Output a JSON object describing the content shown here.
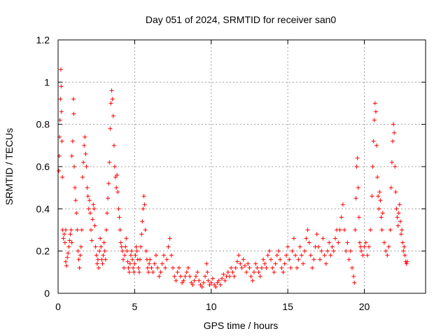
{
  "chart_data": {
    "type": "scatter",
    "title": "Day 051 of 2024, SRMTID for receiver san0",
    "xlabel": "GPS time / hours",
    "ylabel": "SRMTID / TECUs",
    "xlim": [
      0,
      24
    ],
    "ylim": [
      0,
      1.2
    ],
    "xticks": [
      0,
      5,
      10,
      15,
      20
    ],
    "xtick_labels": [
      "0",
      "5",
      "10",
      "15",
      "20"
    ],
    "yticks": [
      0,
      0.2,
      0.4,
      0.6,
      0.8,
      1.0,
      1.2
    ],
    "ytick_labels": [
      "0",
      "0.2",
      "0.4",
      "0.6",
      "0.8",
      "1",
      "1.2"
    ],
    "grid": true,
    "marker": "+",
    "color": "#ff0000",
    "series": [
      {
        "name": "san0",
        "points": [
          [
            0.05,
            0.58
          ],
          [
            0.08,
            0.65
          ],
          [
            0.1,
            0.74
          ],
          [
            0.12,
            0.82
          ],
          [
            0.15,
            0.92
          ],
          [
            0.18,
            1.06
          ],
          [
            0.2,
            0.98
          ],
          [
            0.22,
            0.86
          ],
          [
            0.25,
            0.72
          ],
          [
            0.28,
            0.55
          ],
          [
            0.3,
            0.3
          ],
          [
            0.35,
            0.26
          ],
          [
            0.4,
            0.28
          ],
          [
            0.45,
            0.24
          ],
          [
            0.5,
            0.3
          ],
          [
            0.5,
            0.15
          ],
          [
            0.55,
            0.13
          ],
          [
            0.6,
            0.17
          ],
          [
            0.65,
            0.19
          ],
          [
            0.7,
            0.22
          ],
          [
            0.75,
            0.25
          ],
          [
            0.8,
            0.28
          ],
          [
            0.85,
            0.3
          ],
          [
            0.9,
            0.24
          ],
          [
            0.9,
            0.65
          ],
          [
            0.95,
            0.72
          ],
          [
            1.0,
            0.92
          ],
          [
            1.02,
            0.85
          ],
          [
            1.05,
            0.6
          ],
          [
            1.1,
            0.5
          ],
          [
            1.15,
            0.44
          ],
          [
            1.2,
            0.38
          ],
          [
            1.25,
            0.3
          ],
          [
            1.3,
            0.2
          ],
          [
            1.35,
            0.16
          ],
          [
            1.4,
            0.12
          ],
          [
            1.45,
            0.18
          ],
          [
            1.5,
            0.22
          ],
          [
            1.55,
            0.3
          ],
          [
            1.6,
            0.55
          ],
          [
            1.65,
            0.62
          ],
          [
            1.7,
            0.7
          ],
          [
            1.75,
            0.74
          ],
          [
            1.8,
            0.66
          ],
          [
            1.85,
            0.6
          ],
          [
            1.9,
            0.5
          ],
          [
            1.95,
            0.46
          ],
          [
            2.0,
            0.4
          ],
          [
            2.05,
            0.44
          ],
          [
            2.1,
            0.38
          ],
          [
            2.15,
            0.3
          ],
          [
            2.2,
            0.25
          ],
          [
            2.25,
            0.35
          ],
          [
            2.3,
            0.42
          ],
          [
            2.35,
            0.4
          ],
          [
            2.4,
            0.32
          ],
          [
            2.45,
            0.22
          ],
          [
            2.5,
            0.18
          ],
          [
            2.55,
            0.14
          ],
          [
            2.6,
            0.16
          ],
          [
            2.65,
            0.12
          ],
          [
            2.7,
            0.2
          ],
          [
            2.75,
            0.26
          ],
          [
            2.8,
            0.22
          ],
          [
            2.85,
            0.16
          ],
          [
            2.9,
            0.14
          ],
          [
            2.95,
            0.18
          ],
          [
            3.0,
            0.24
          ],
          [
            3.05,
            0.2
          ],
          [
            3.1,
            0.16
          ],
          [
            3.15,
            0.3
          ],
          [
            3.2,
            0.38
          ],
          [
            3.25,
            0.45
          ],
          [
            3.3,
            0.52
          ],
          [
            3.35,
            0.62
          ],
          [
            3.4,
            0.78
          ],
          [
            3.45,
            0.9
          ],
          [
            3.5,
            0.96
          ],
          [
            3.55,
            0.92
          ],
          [
            3.6,
            0.84
          ],
          [
            3.65,
            0.7
          ],
          [
            3.7,
            0.6
          ],
          [
            3.75,
            0.55
          ],
          [
            3.8,
            0.5
          ],
          [
            3.85,
            0.56
          ],
          [
            3.9,
            0.48
          ],
          [
            3.95,
            0.4
          ],
          [
            4.0,
            0.36
          ],
          [
            4.05,
            0.3
          ],
          [
            4.1,
            0.24
          ],
          [
            4.15,
            0.22
          ],
          [
            4.2,
            0.2
          ],
          [
            4.25,
            0.16
          ],
          [
            4.3,
            0.12
          ],
          [
            4.35,
            0.18
          ],
          [
            4.4,
            0.22
          ],
          [
            4.45,
            0.26
          ],
          [
            4.5,
            0.2
          ],
          [
            4.55,
            0.15
          ],
          [
            4.6,
            0.12
          ],
          [
            4.65,
            0.1
          ],
          [
            4.7,
            0.14
          ],
          [
            4.75,
            0.18
          ],
          [
            4.8,
            0.2
          ],
          [
            4.85,
            0.16
          ],
          [
            4.9,
            0.12
          ],
          [
            4.95,
            0.1
          ],
          [
            5.0,
            0.14
          ],
          [
            5.05,
            0.18
          ],
          [
            5.1,
            0.22
          ],
          [
            5.15,
            0.2
          ],
          [
            5.2,
            0.16
          ],
          [
            5.25,
            0.12
          ],
          [
            5.3,
            0.1
          ],
          [
            5.35,
            0.16
          ],
          [
            5.4,
            0.22
          ],
          [
            5.45,
            0.28
          ],
          [
            5.5,
            0.34
          ],
          [
            5.55,
            0.4
          ],
          [
            5.6,
            0.46
          ],
          [
            5.65,
            0.42
          ],
          [
            5.7,
            0.3
          ],
          [
            5.75,
            0.2
          ],
          [
            5.8,
            0.16
          ],
          [
            5.85,
            0.12
          ],
          [
            5.9,
            0.1
          ],
          [
            5.95,
            0.14
          ],
          [
            6.0,
            0.16
          ],
          [
            6.1,
            0.12
          ],
          [
            6.2,
            0.1
          ],
          [
            6.3,
            0.14
          ],
          [
            6.4,
            0.18
          ],
          [
            6.5,
            0.12
          ],
          [
            6.6,
            0.08
          ],
          [
            6.7,
            0.1
          ],
          [
            6.8,
            0.14
          ],
          [
            6.9,
            0.18
          ],
          [
            7.0,
            0.12
          ],
          [
            7.1,
            0.16
          ],
          [
            7.2,
            0.22
          ],
          [
            7.3,
            0.26
          ],
          [
            7.4,
            0.18
          ],
          [
            7.5,
            0.12
          ],
          [
            7.6,
            0.08
          ],
          [
            7.7,
            0.06
          ],
          [
            7.8,
            0.1
          ],
          [
            7.9,
            0.12
          ],
          [
            8.0,
            0.08
          ],
          [
            8.1,
            0.05
          ],
          [
            8.2,
            0.06
          ],
          [
            8.3,
            0.08
          ],
          [
            8.4,
            0.1
          ],
          [
            8.5,
            0.12
          ],
          [
            8.6,
            0.08
          ],
          [
            8.7,
            0.05
          ],
          [
            8.8,
            0.04
          ],
          [
            8.9,
            0.06
          ],
          [
            9.0,
            0.08
          ],
          [
            9.1,
            0.1
          ],
          [
            9.2,
            0.06
          ],
          [
            9.3,
            0.04
          ],
          [
            9.4,
            0.03
          ],
          [
            9.5,
            0.05
          ],
          [
            9.6,
            0.08
          ],
          [
            9.7,
            0.14
          ],
          [
            9.75,
            0.1
          ],
          [
            9.8,
            0.06
          ],
          [
            9.9,
            0.04
          ],
          [
            10.0,
            0.05
          ],
          [
            10.1,
            0.07
          ],
          [
            10.2,
            0.04
          ],
          [
            10.3,
            0.03
          ],
          [
            10.4,
            0.05
          ],
          [
            10.5,
            0.06
          ],
          [
            10.6,
            0.04
          ],
          [
            10.7,
            0.07
          ],
          [
            10.8,
            0.09
          ],
          [
            10.9,
            0.06
          ],
          [
            11.0,
            0.08
          ],
          [
            11.1,
            0.1
          ],
          [
            11.2,
            0.08
          ],
          [
            11.3,
            0.12
          ],
          [
            11.4,
            0.1
          ],
          [
            11.5,
            0.08
          ],
          [
            11.6,
            0.12
          ],
          [
            11.7,
            0.15
          ],
          [
            11.8,
            0.18
          ],
          [
            11.9,
            0.14
          ],
          [
            12.0,
            0.12
          ],
          [
            12.1,
            0.16
          ],
          [
            12.2,
            0.13
          ],
          [
            12.3,
            0.1
          ],
          [
            12.4,
            0.14
          ],
          [
            12.5,
            0.12
          ],
          [
            12.6,
            0.08
          ],
          [
            12.7,
            0.06
          ],
          [
            12.8,
            0.1
          ],
          [
            12.9,
            0.14
          ],
          [
            13.0,
            0.12
          ],
          [
            13.1,
            0.1
          ],
          [
            13.2,
            0.08
          ],
          [
            13.3,
            0.12
          ],
          [
            13.4,
            0.16
          ],
          [
            13.5,
            0.14
          ],
          [
            13.6,
            0.12
          ],
          [
            13.7,
            0.18
          ],
          [
            13.8,
            0.2
          ],
          [
            13.9,
            0.16
          ],
          [
            14.0,
            0.12
          ],
          [
            14.1,
            0.1
          ],
          [
            14.2,
            0.14
          ],
          [
            14.3,
            0.18
          ],
          [
            14.4,
            0.2
          ],
          [
            14.5,
            0.16
          ],
          [
            14.6,
            0.12
          ],
          [
            14.7,
            0.1
          ],
          [
            14.8,
            0.14
          ],
          [
            14.9,
            0.18
          ],
          [
            15.0,
            0.22
          ],
          [
            15.1,
            0.16
          ],
          [
            15.2,
            0.12
          ],
          [
            15.3,
            0.2
          ],
          [
            15.4,
            0.26
          ],
          [
            15.5,
            0.18
          ],
          [
            15.6,
            0.12
          ],
          [
            15.7,
            0.16
          ],
          [
            15.8,
            0.22
          ],
          [
            15.9,
            0.18
          ],
          [
            16.0,
            0.14
          ],
          [
            16.1,
            0.2
          ],
          [
            16.2,
            0.26
          ],
          [
            16.3,
            0.3
          ],
          [
            16.4,
            0.24
          ],
          [
            16.5,
            0.18
          ],
          [
            16.6,
            0.12
          ],
          [
            16.7,
            0.16
          ],
          [
            16.8,
            0.22
          ],
          [
            16.9,
            0.28
          ],
          [
            17.0,
            0.22
          ],
          [
            17.1,
            0.16
          ],
          [
            17.2,
            0.2
          ],
          [
            17.3,
            0.26
          ],
          [
            17.4,
            0.18
          ],
          [
            17.5,
            0.14
          ],
          [
            17.6,
            0.2
          ],
          [
            17.7,
            0.24
          ],
          [
            17.8,
            0.18
          ],
          [
            17.9,
            0.22
          ],
          [
            18.0,
            0.2
          ],
          [
            18.1,
            0.26
          ],
          [
            18.2,
            0.3
          ],
          [
            18.3,
            0.24
          ],
          [
            18.4,
            0.3
          ],
          [
            18.5,
            0.36
          ],
          [
            18.6,
            0.42
          ],
          [
            18.7,
            0.3
          ],
          [
            18.8,
            0.2
          ],
          [
            18.9,
            0.24
          ],
          [
            19.0,
            0.16
          ],
          [
            19.1,
            0.2
          ],
          [
            19.2,
            0.12
          ],
          [
            19.3,
            0.08
          ],
          [
            19.35,
            0.05
          ],
          [
            19.4,
            0.3
          ],
          [
            19.45,
            0.45
          ],
          [
            19.5,
            0.6
          ],
          [
            19.55,
            0.64
          ],
          [
            19.6,
            0.5
          ],
          [
            19.65,
            0.36
          ],
          [
            19.7,
            0.24
          ],
          [
            19.75,
            0.22
          ],
          [
            19.8,
            0.2
          ],
          [
            19.9,
            0.18
          ],
          [
            20.0,
            0.22
          ],
          [
            20.1,
            0.24
          ],
          [
            20.2,
            0.18
          ],
          [
            20.3,
            0.22
          ],
          [
            20.4,
            0.3
          ],
          [
            20.5,
            0.46
          ],
          [
            20.55,
            0.6
          ],
          [
            20.6,
            0.72
          ],
          [
            20.65,
            0.82
          ],
          [
            20.7,
            0.9
          ],
          [
            20.75,
            0.86
          ],
          [
            20.8,
            0.7
          ],
          [
            20.85,
            0.55
          ],
          [
            20.9,
            0.46
          ],
          [
            20.95,
            0.4
          ],
          [
            21.0,
            0.48
          ],
          [
            21.05,
            0.44
          ],
          [
            21.1,
            0.36
          ],
          [
            21.15,
            0.3
          ],
          [
            21.2,
            0.38
          ],
          [
            21.3,
            0.24
          ],
          [
            21.4,
            0.2
          ],
          [
            21.5,
            0.18
          ],
          [
            21.6,
            0.22
          ],
          [
            21.7,
            0.3
          ],
          [
            21.75,
            0.5
          ],
          [
            21.8,
            0.62
          ],
          [
            21.85,
            0.72
          ],
          [
            21.9,
            0.8
          ],
          [
            21.95,
            0.76
          ],
          [
            22.0,
            0.6
          ],
          [
            22.05,
            0.48
          ],
          [
            22.1,
            0.4
          ],
          [
            22.15,
            0.36
          ],
          [
            22.2,
            0.32
          ],
          [
            22.25,
            0.38
          ],
          [
            22.3,
            0.42
          ],
          [
            22.35,
            0.34
          ],
          [
            22.4,
            0.28
          ],
          [
            22.45,
            0.3
          ],
          [
            22.5,
            0.24
          ],
          [
            22.55,
            0.2
          ],
          [
            22.6,
            0.22
          ],
          [
            22.65,
            0.18
          ],
          [
            22.7,
            0.15
          ],
          [
            22.75,
            0.14
          ],
          [
            22.8,
            0.15
          ]
        ]
      }
    ]
  }
}
